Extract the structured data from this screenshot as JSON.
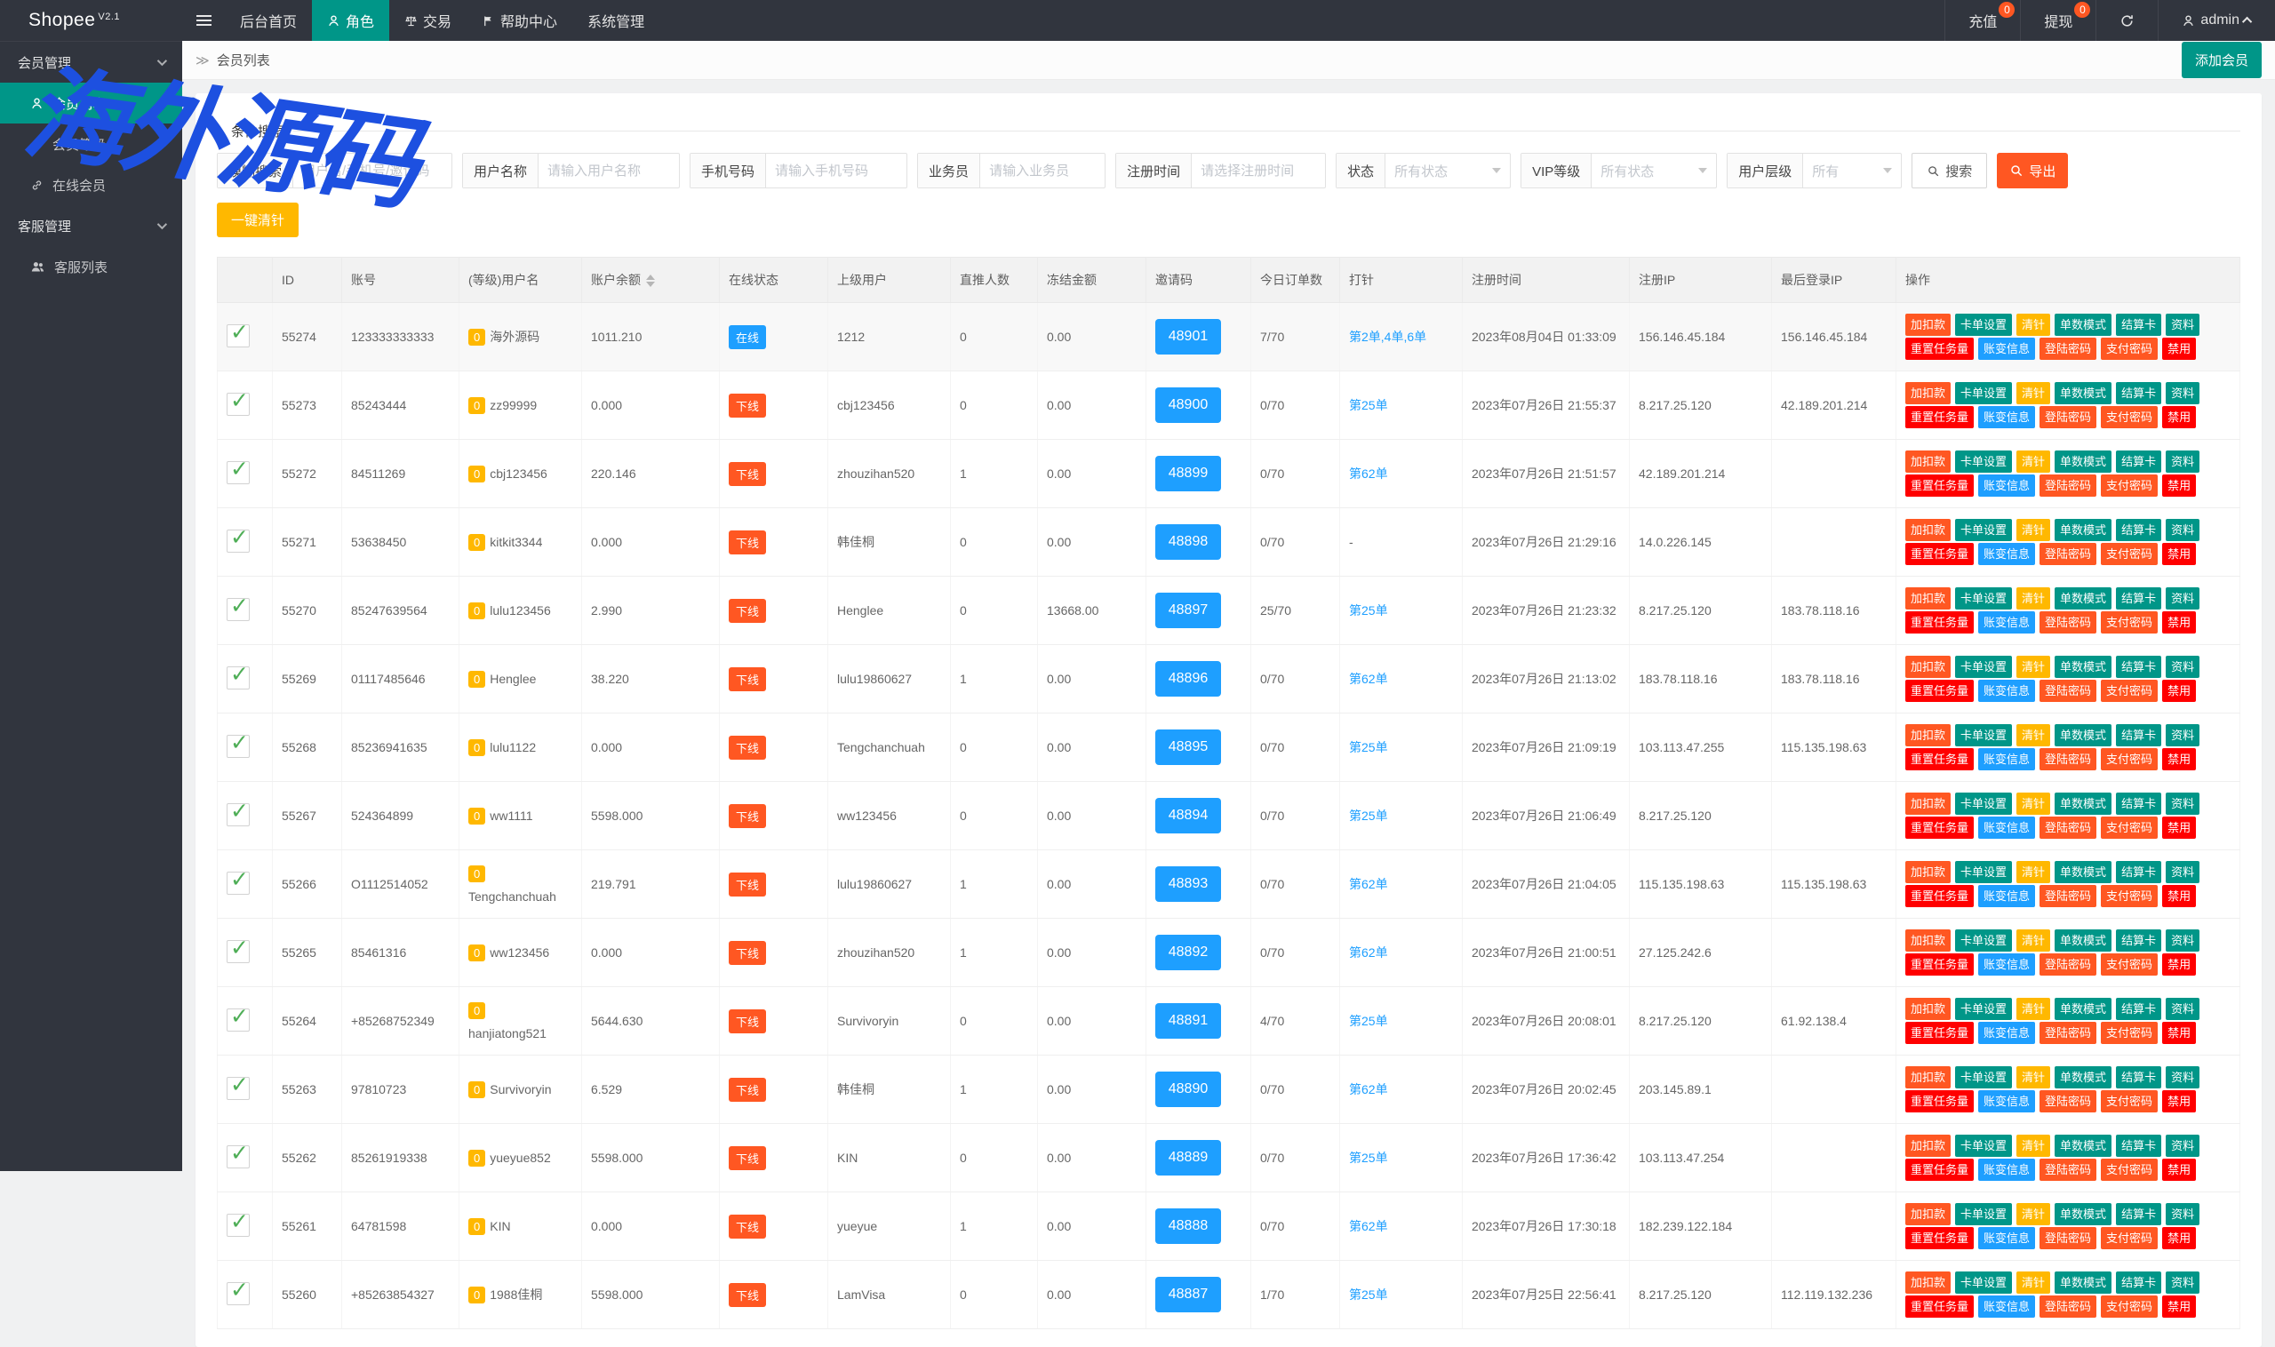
{
  "watermark": {
    "text": "海外源码",
    "color": "#1d50e0"
  },
  "navbar": {
    "logo": "Shopee",
    "logo_sup": "V2.1",
    "menu": [
      {
        "label": "后台首页",
        "active": false
      },
      {
        "label": "角色",
        "active": true
      },
      {
        "label": "交易",
        "active": false
      },
      {
        "label": "帮助中心",
        "active": false
      },
      {
        "label": "系统管理",
        "active": false
      }
    ],
    "recharge": {
      "label": "充值",
      "badge": "0"
    },
    "withdraw": {
      "label": "提现",
      "badge": "0"
    },
    "username": "admin"
  },
  "sidebar": {
    "groups": [
      {
        "title": "会员管理",
        "items": [
          {
            "label": "会员列表",
            "active": true
          },
          {
            "label": "会员等级",
            "active": false
          },
          {
            "label": "在线会员",
            "active": false
          }
        ]
      },
      {
        "title": "客服管理",
        "items": [
          {
            "label": "客服列表",
            "active": false
          }
        ]
      }
    ]
  },
  "breadcrumb": {
    "current": "会员列表"
  },
  "page_actions": {
    "add_member": "添加会员"
  },
  "filters": {
    "legend": "条件搜索",
    "fuzzy": {
      "label": "模糊搜索",
      "placeholder": "用户名/手机号/邀请码"
    },
    "username": {
      "label": "用户名称",
      "placeholder": "请输入用户名称"
    },
    "phone": {
      "label": "手机号码",
      "placeholder": "请输入手机号码"
    },
    "salesman": {
      "label": "业务员",
      "placeholder": "请输入业务员"
    },
    "reg_time": {
      "label": "注册时间",
      "placeholder": "请选择注册时间"
    },
    "status": {
      "label": "状态",
      "value": "所有状态"
    },
    "vip": {
      "label": "VIP等级",
      "value": "所有状态"
    },
    "level": {
      "label": "用户层级",
      "value": "所有"
    },
    "search_label": "搜索",
    "export_label": "导出"
  },
  "toolbar": {
    "clear_all": "一键清针"
  },
  "status_colors": {
    "online": "#1e9fff",
    "offline": "#ff5722",
    "level_badge": "#ffb800",
    "invite": "#1e9fff"
  },
  "row_actions": {
    "line1": [
      {
        "label": "加扣款",
        "color": "#ff5722"
      },
      {
        "label": "卡单设置",
        "color": "#009688"
      },
      {
        "label": "清针",
        "color": "#ffb800"
      },
      {
        "label": "单数模式",
        "color": "#009688"
      },
      {
        "label": "结算卡",
        "color": "#009688"
      },
      {
        "label": "资料",
        "color": "#009688"
      }
    ],
    "line2": [
      {
        "label": "重置任务量",
        "color": "#ff0000"
      },
      {
        "label": "账变信息",
        "color": "#1e9fff"
      },
      {
        "label": "登陆密码",
        "color": "#ff5722"
      },
      {
        "label": "支付密码",
        "color": "#ff5722"
      },
      {
        "label": "禁用",
        "color": "#ff0000"
      }
    ]
  },
  "table": {
    "headers": [
      "",
      "ID",
      "账号",
      "(等级)用户名",
      "账户余额",
      "在线状态",
      "上级用户",
      "直推人数",
      "冻结金额",
      "邀请码",
      "今日订单数",
      "打针",
      "注册时间",
      "注册IP",
      "最后登录IP",
      "操作"
    ],
    "rows": [
      {
        "id": "55274",
        "account": "123333333333",
        "level": "0",
        "username": "海外源码",
        "wrap": false,
        "balance": "1011.210",
        "status": "在线",
        "parent": "1212",
        "direct": "0",
        "frozen": "0.00",
        "invite": "48901",
        "orders": "7/70",
        "pin": "第2单,4单,6单",
        "reg_time": "2023年08月04日 01:33:09",
        "reg_ip": "156.146.45.184",
        "last_ip": "156.146.45.184"
      },
      {
        "id": "55273",
        "account": "85243444",
        "level": "0",
        "username": "zz99999",
        "wrap": false,
        "balance": "0.000",
        "status": "下线",
        "parent": "cbj123456",
        "direct": "0",
        "frozen": "0.00",
        "invite": "48900",
        "orders": "0/70",
        "pin": "第25单",
        "reg_time": "2023年07月26日 21:55:37",
        "reg_ip": "8.217.25.120",
        "last_ip": "42.189.201.214"
      },
      {
        "id": "55272",
        "account": "84511269",
        "level": "0",
        "username": "cbj123456",
        "wrap": false,
        "balance": "220.146",
        "status": "下线",
        "parent": "zhouzihan520",
        "direct": "1",
        "frozen": "0.00",
        "invite": "48899",
        "orders": "0/70",
        "pin": "第62单",
        "reg_time": "2023年07月26日 21:51:57",
        "reg_ip": "42.189.201.214",
        "last_ip": ""
      },
      {
        "id": "55271",
        "account": "53638450",
        "level": "0",
        "username": "kitkit3344",
        "wrap": false,
        "balance": "0.000",
        "status": "下线",
        "parent": "韩佳桐",
        "direct": "0",
        "frozen": "0.00",
        "invite": "48898",
        "orders": "0/70",
        "pin": "-",
        "reg_time": "2023年07月26日 21:29:16",
        "reg_ip": "14.0.226.145",
        "last_ip": ""
      },
      {
        "id": "55270",
        "account": "85247639564",
        "level": "0",
        "username": "lulu123456",
        "wrap": false,
        "balance": "2.990",
        "status": "下线",
        "parent": "Henglee",
        "direct": "0",
        "frozen": "13668.00",
        "invite": "48897",
        "orders": "25/70",
        "pin": "第25单",
        "reg_time": "2023年07月26日 21:23:32",
        "reg_ip": "8.217.25.120",
        "last_ip": "183.78.118.16"
      },
      {
        "id": "55269",
        "account": "01117485646",
        "level": "0",
        "username": "Henglee",
        "wrap": false,
        "balance": "38.220",
        "status": "下线",
        "parent": "lulu19860627",
        "direct": "1",
        "frozen": "0.00",
        "invite": "48896",
        "orders": "0/70",
        "pin": "第62单",
        "reg_time": "2023年07月26日 21:13:02",
        "reg_ip": "183.78.118.16",
        "last_ip": "183.78.118.16"
      },
      {
        "id": "55268",
        "account": "85236941635",
        "level": "0",
        "username": "lulu1122",
        "wrap": false,
        "balance": "0.000",
        "status": "下线",
        "parent": "Tengchanchuah",
        "direct": "0",
        "frozen": "0.00",
        "invite": "48895",
        "orders": "0/70",
        "pin": "第25单",
        "reg_time": "2023年07月26日 21:09:19",
        "reg_ip": "103.113.47.255",
        "last_ip": "115.135.198.63"
      },
      {
        "id": "55267",
        "account": "524364899",
        "level": "0",
        "username": "ww1111",
        "wrap": false,
        "balance": "5598.000",
        "status": "下线",
        "parent": "ww123456",
        "direct": "0",
        "frozen": "0.00",
        "invite": "48894",
        "orders": "0/70",
        "pin": "第25单",
        "reg_time": "2023年07月26日 21:06:49",
        "reg_ip": "8.217.25.120",
        "last_ip": ""
      },
      {
        "id": "55266",
        "account": "O1112514052",
        "level": "0",
        "username": "Tengchanchuah",
        "wrap": true,
        "balance": "219.791",
        "status": "下线",
        "parent": "lulu19860627",
        "direct": "1",
        "frozen": "0.00",
        "invite": "48893",
        "orders": "0/70",
        "pin": "第62单",
        "reg_time": "2023年07月26日 21:04:05",
        "reg_ip": "115.135.198.63",
        "last_ip": "115.135.198.63"
      },
      {
        "id": "55265",
        "account": "85461316",
        "level": "0",
        "username": "ww123456",
        "wrap": false,
        "balance": "0.000",
        "status": "下线",
        "parent": "zhouzihan520",
        "direct": "1",
        "frozen": "0.00",
        "invite": "48892",
        "orders": "0/70",
        "pin": "第62单",
        "reg_time": "2023年07月26日 21:00:51",
        "reg_ip": "27.125.242.6",
        "last_ip": ""
      },
      {
        "id": "55264",
        "account": "+85268752349",
        "level": "0",
        "username": "hanjiatong521",
        "wrap": true,
        "balance": "5644.630",
        "status": "下线",
        "parent": "Survivoryin",
        "direct": "0",
        "frozen": "0.00",
        "invite": "48891",
        "orders": "4/70",
        "pin": "第25单",
        "reg_time": "2023年07月26日 20:08:01",
        "reg_ip": "8.217.25.120",
        "last_ip": "61.92.138.4"
      },
      {
        "id": "55263",
        "account": "97810723",
        "level": "0",
        "username": "Survivoryin",
        "wrap": false,
        "balance": "6.529",
        "status": "下线",
        "parent": "韩佳桐",
        "direct": "1",
        "frozen": "0.00",
        "invite": "48890",
        "orders": "0/70",
        "pin": "第62单",
        "reg_time": "2023年07月26日 20:02:45",
        "reg_ip": "203.145.89.1",
        "last_ip": ""
      },
      {
        "id": "55262",
        "account": "85261919338",
        "level": "0",
        "username": "yueyue852",
        "wrap": false,
        "balance": "5598.000",
        "status": "下线",
        "parent": "KIN",
        "direct": "0",
        "frozen": "0.00",
        "invite": "48889",
        "orders": "0/70",
        "pin": "第25单",
        "reg_time": "2023年07月26日 17:36:42",
        "reg_ip": "103.113.47.254",
        "last_ip": ""
      },
      {
        "id": "55261",
        "account": "64781598",
        "level": "0",
        "username": "KIN",
        "wrap": false,
        "balance": "0.000",
        "status": "下线",
        "parent": "yueyue",
        "direct": "1",
        "frozen": "0.00",
        "invite": "48888",
        "orders": "0/70",
        "pin": "第62单",
        "reg_time": "2023年07月26日 17:30:18",
        "reg_ip": "182.239.122.184",
        "last_ip": ""
      },
      {
        "id": "55260",
        "account": "+85263854327",
        "level": "0",
        "username": "1988佳桐",
        "wrap": false,
        "balance": "5598.000",
        "status": "下线",
        "parent": "LamVisa",
        "direct": "0",
        "frozen": "0.00",
        "invite": "48887",
        "orders": "1/70",
        "pin": "第25单",
        "reg_time": "2023年07月25日 22:56:41",
        "reg_ip": "8.217.25.120",
        "last_ip": "112.119.132.236"
      }
    ]
  }
}
